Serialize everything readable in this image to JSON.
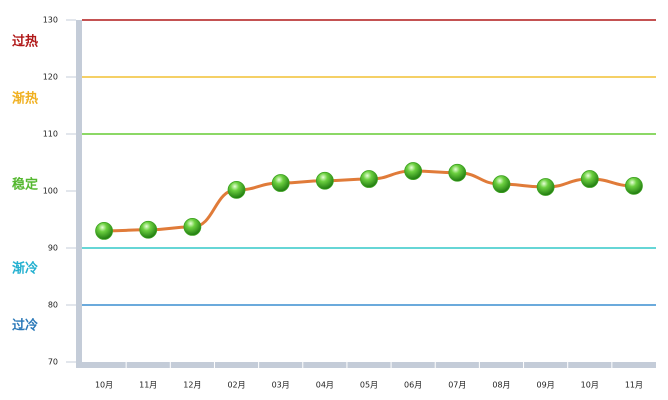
{
  "chart_data": {
    "type": "line",
    "categories": [
      "10月",
      "11月",
      "12月",
      "02月",
      "03月",
      "04月",
      "05月",
      "06月",
      "07月",
      "08月",
      "09月",
      "10月",
      "11月"
    ],
    "series": [
      {
        "color": "#e07b39",
        "marker_color": "#3aa01e",
        "values": [
          93.0,
          93.2,
          93.7,
          100.2,
          101.4,
          101.8,
          102.1,
          103.5,
          103.2,
          101.2,
          100.7,
          102.1,
          100.9
        ]
      }
    ],
    "ylim": [
      70,
      130
    ],
    "yticks": [
      70,
      80,
      90,
      100,
      110,
      120,
      130
    ],
    "reference_lines": [
      {
        "value": 130,
        "color": "#b01818"
      },
      {
        "value": 120,
        "color": "#f2c033"
      },
      {
        "value": 110,
        "color": "#66cc33"
      },
      {
        "value": 90,
        "color": "#33c8c8"
      },
      {
        "value": 80,
        "color": "#3a8ed0"
      }
    ],
    "zones": [
      {
        "label": "过热",
        "color": "#b01818"
      },
      {
        "label": "渐热",
        "color": "#f0b020"
      },
      {
        "label": "稳定",
        "color": "#55b830"
      },
      {
        "label": "渐冷",
        "color": "#22b0d0"
      },
      {
        "label": "过冷",
        "color": "#2a78b8"
      }
    ]
  }
}
